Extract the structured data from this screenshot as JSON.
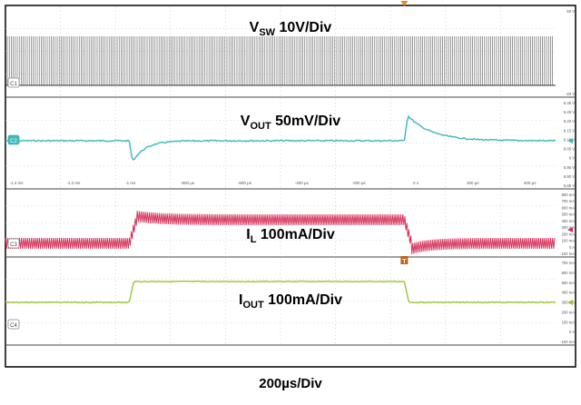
{
  "chart_data": {
    "type": "line",
    "timebase": "200µs/Div",
    "time_axis": {
      "unit": "µs",
      "ticks": [
        "-1.4 ms",
        "-1.2 ms",
        "-1 ms",
        "-800 µs",
        "-600 µs",
        "-400 µs",
        "-200 µs",
        "0 s",
        "200 µs",
        "400 µs"
      ],
      "range": [
        -1.45,
        0.55
      ]
    },
    "channels": [
      {
        "id": "C1",
        "label_main": "V",
        "label_sub": "SW",
        "label_rest": " 10V/Div",
        "color": "#555555",
        "waveform": "switching",
        "right_ticks": [
          "60 V",
          "-20 V"
        ],
        "grid": true
      },
      {
        "id": "C2",
        "label_main": "V",
        "label_sub": "OUT",
        "label_rest": " 50mV/Div",
        "color": "#3cb8b8",
        "waveform": "output-voltage",
        "right_ticks": [
          "6.35 V",
          "6.25 V",
          "6.20 V",
          "6.15 V",
          "6.10 V",
          "6.05 V",
          "6 V",
          "5.95 V",
          "5.90 V",
          "5.85 V"
        ],
        "transients": [
          {
            "time_ms": -1.0,
            "direction": "undershoot",
            "peak_div": -2.8
          },
          {
            "time_ms": 0.0,
            "direction": "overshoot",
            "peak_div": 3.2
          }
        ],
        "grid": true
      },
      {
        "id": "C3",
        "label_main": "I",
        "label_sub": "L",
        "label_rest": " 100mA/Div",
        "color": "#d42a55",
        "waveform": "inductor-current",
        "right_ticks": [
          "800 mA",
          "700 mA",
          "600 mA",
          "500 mA",
          "400 mA",
          "300 mA",
          "200 mA",
          "100 mA",
          "0 A",
          "-100 mA"
        ],
        "levels_mA": {
          "low": 100,
          "high": 550
        },
        "step_times_ms": [
          -1.0,
          0.0
        ],
        "grid": true
      },
      {
        "id": "C4",
        "label_main": "I",
        "label_sub": "OUT",
        "label_rest": " 100mA/Div",
        "color": "#9ec23a",
        "waveform": "output-current",
        "right_ticks": [
          "700 mA",
          "600 mA",
          "500 mA",
          "400 mA",
          "300 mA",
          "200 mA",
          "100 mA",
          "0 A",
          "-100 mA"
        ],
        "levels_mA": {
          "low": 200,
          "high": 550
        },
        "step_times_ms": [
          -1.0,
          0.0
        ],
        "trigger_marker": "T",
        "grid": true
      }
    ]
  }
}
